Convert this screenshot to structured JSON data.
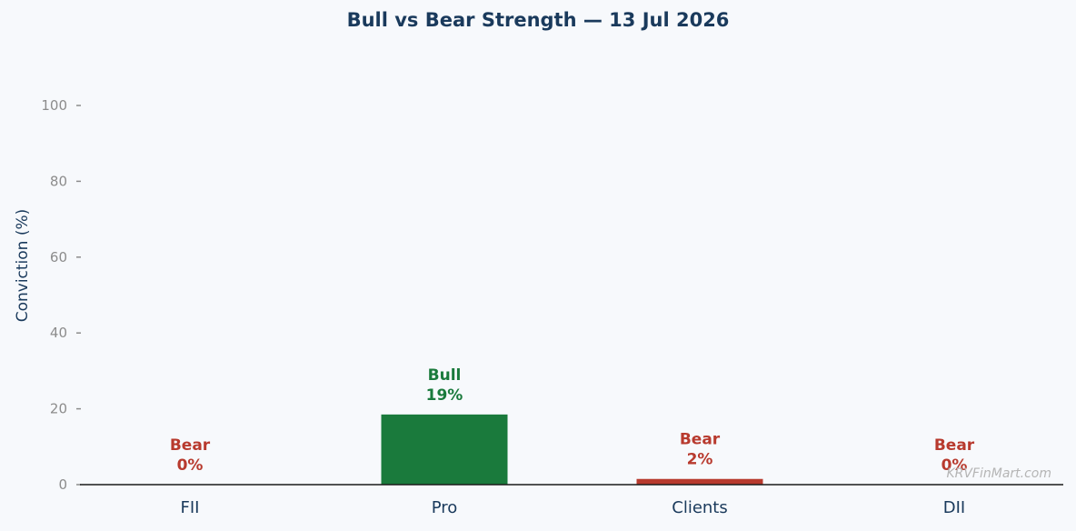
{
  "chart_data": {
    "type": "bar",
    "title": "Bull vs Bear Strength — 13 Jul 2026",
    "xlabel": "",
    "ylabel": "Conviction (%)",
    "ylim": [
      0,
      110
    ],
    "yticks": [
      0,
      20,
      40,
      60,
      80,
      100
    ],
    "categories": [
      "FII",
      "Pro",
      "Clients",
      "DII"
    ],
    "values": [
      0,
      18.5,
      1.5,
      0
    ],
    "bar_labels": [
      {
        "side": "Bear",
        "value": "0%"
      },
      {
        "side": "Bull",
        "value": "19%"
      },
      {
        "side": "Bear",
        "value": "2%"
      },
      {
        "side": "Bear",
        "value": "0%"
      }
    ],
    "grid": false,
    "legend": "none"
  },
  "colors": {
    "Bull": "#1a7a3c",
    "Bear": "#b83a2e",
    "axis": "#1a1a1a",
    "title": "#1a3a5c"
  },
  "watermark": "KRVFinMart.com"
}
